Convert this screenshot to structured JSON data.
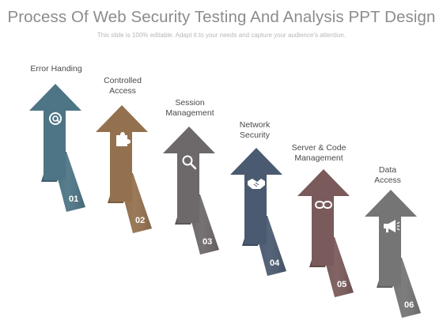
{
  "header": {
    "title": "Process Of Web Security Testing And Analysis PPT Design",
    "subtitle": "This slide is 100% editable. Adapt it to your needs and capture your audience's attention."
  },
  "steps": [
    {
      "label": "Error Handing",
      "number": "01",
      "icon": "at-sign-icon",
      "color": "#4d7585",
      "dark": "#3e606d"
    },
    {
      "label": "Controlled\nAccess",
      "number": "02",
      "icon": "puzzle-piece-icon",
      "color": "#94714e",
      "dark": "#7a5c3f"
    },
    {
      "label": "Session\nManagement",
      "number": "03",
      "icon": "magnifier-icon",
      "color": "#6d6869",
      "dark": "#5a5556"
    },
    {
      "label": "Network\nSecurity",
      "number": "04",
      "icon": "handshake-icon",
      "color": "#4a5a70",
      "dark": "#3b495c"
    },
    {
      "label": "Server & Code\nManagement",
      "number": "05",
      "icon": "chain-link-icon",
      "color": "#7a5a5a",
      "dark": "#644848"
    },
    {
      "label": "Data\nAccess",
      "number": "06",
      "icon": "megaphone-icon",
      "color": "#757575",
      "dark": "#606060"
    }
  ]
}
